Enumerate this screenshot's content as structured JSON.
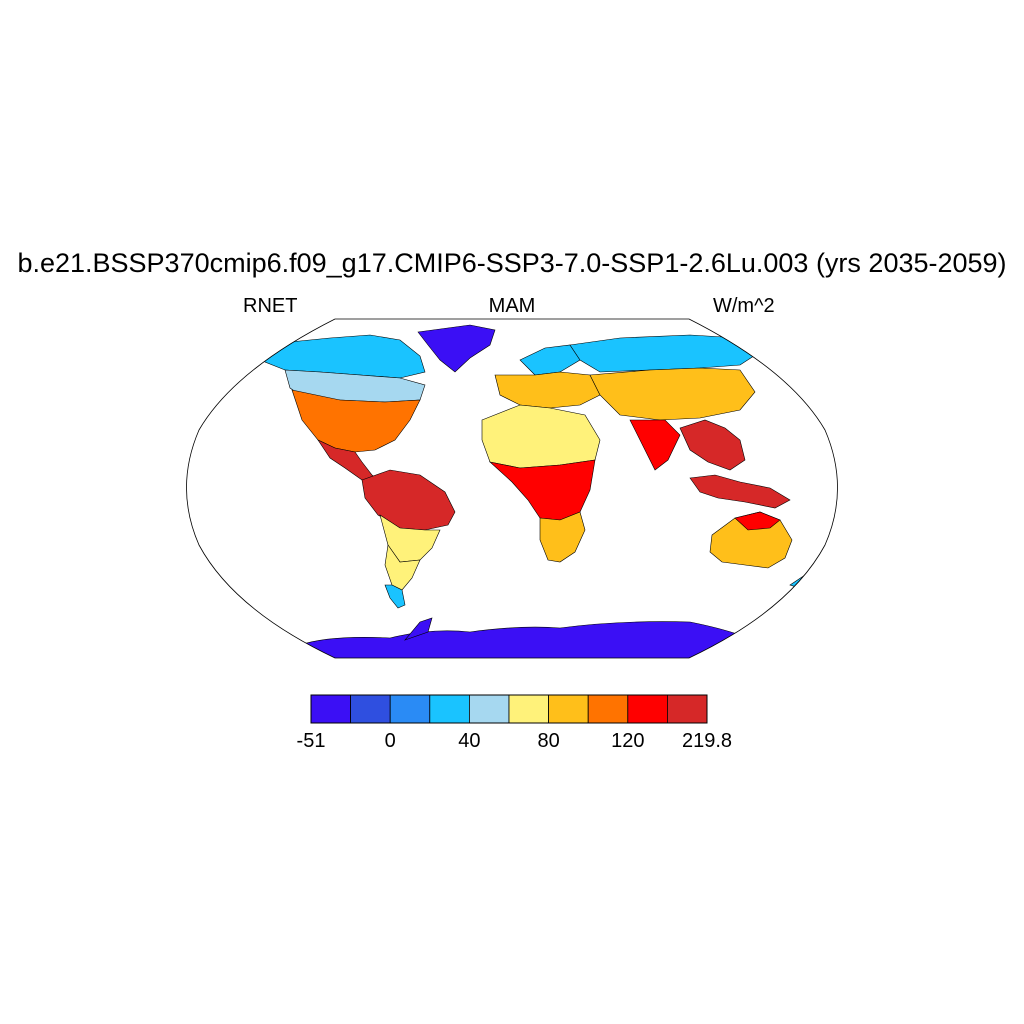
{
  "title": "b.e21.BSSP370cmip6.f09_g17.CMIP6-SSP3-7.0-SSP1-2.6Lu.003 (yrs 2035-2059)",
  "subtitle_left": "RNET",
  "subtitle_center": "MAM",
  "subtitle_right": "W/m^2",
  "colorbar": {
    "colors": [
      "#3b0ff5",
      "#2f4fe0",
      "#2a8bf5",
      "#1ac3ff",
      "#a6d8f0",
      "#fff27a",
      "#ffbf1a",
      "#ff7300",
      "#ff0000",
      "#d62828"
    ],
    "labels": [
      "-51",
      "0",
      "40",
      "80",
      "120",
      "219.8"
    ]
  },
  "chart_data": {
    "type": "heatmap",
    "projection": "Robinson",
    "variable": "RNET",
    "season": "MAM",
    "units": "W/m^2",
    "value_range": [
      -51,
      219.8
    ],
    "color_levels": [
      -51,
      -20,
      0,
      20,
      40,
      60,
      80,
      100,
      120,
      150,
      219.8
    ],
    "regions": [
      {
        "name": "Antarctica",
        "level": 0
      },
      {
        "name": "Greenland",
        "level": 0
      },
      {
        "name": "Arctic coast",
        "level": 3
      },
      {
        "name": "Canada",
        "level": 4
      },
      {
        "name": "United States",
        "level": 7
      },
      {
        "name": "Central America",
        "level": 9
      },
      {
        "name": "Amazon",
        "level": 9
      },
      {
        "name": "Southern South America",
        "level": 5
      },
      {
        "name": "Patagonia",
        "level": 3
      },
      {
        "name": "Europe",
        "level": 6
      },
      {
        "name": "Siberia",
        "level": 3
      },
      {
        "name": "Central Asia",
        "level": 6
      },
      {
        "name": "Sahara",
        "level": 5
      },
      {
        "name": "Central Africa",
        "level": 8
      },
      {
        "name": "Southern Africa",
        "level": 6
      },
      {
        "name": "India",
        "level": 8
      },
      {
        "name": "Southeast Asia",
        "level": 9
      },
      {
        "name": "Australia",
        "level": 6
      },
      {
        "name": "New Zealand",
        "level": 3
      }
    ]
  }
}
